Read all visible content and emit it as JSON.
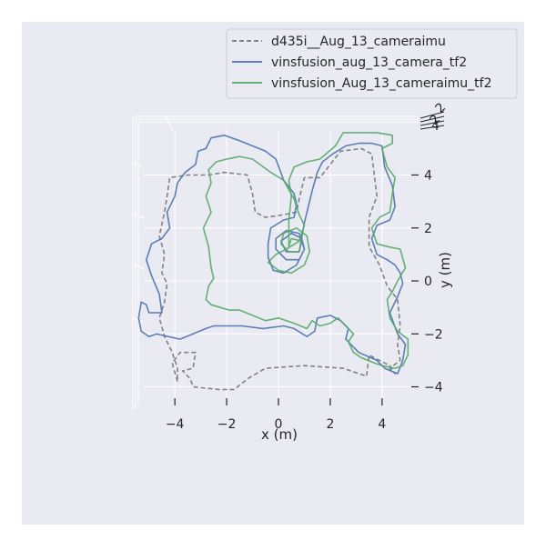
{
  "chart_data": {
    "type": "line",
    "projection": "3d-top-view",
    "title": "",
    "xlabel": "x (m)",
    "ylabel": "y (m)",
    "xlim": [
      -5.2,
      5.2
    ],
    "ylim": [
      -4.6,
      5.7
    ],
    "xticks": [
      -4,
      -2,
      0,
      2,
      4
    ],
    "yticks": [
      -4,
      -2,
      0,
      2,
      4
    ],
    "xtick_labels": [
      "−4",
      "−2",
      "0",
      "2",
      "4"
    ],
    "ytick_labels": [
      "−4",
      "−2",
      "0",
      "2",
      "4"
    ],
    "grid": true,
    "legend_position": "upper-right",
    "series": [
      {
        "name": "d435i__Aug_13_cameraimu",
        "color": "#777777",
        "dash": "dashed",
        "points": [
          [
            -3.9,
            -3.8
          ],
          [
            -4.1,
            -3.1
          ],
          [
            -3.8,
            -2.7
          ],
          [
            -3.2,
            -2.7
          ],
          [
            -3.3,
            -3.3
          ],
          [
            -3.7,
            -3.4
          ],
          [
            -3.4,
            -3.7
          ],
          [
            -3.3,
            -4.0
          ],
          [
            -2.3,
            -4.1
          ],
          [
            -1.7,
            -4.1
          ],
          [
            -1.2,
            -3.7
          ],
          [
            -0.5,
            -3.3
          ],
          [
            1.0,
            -3.2
          ],
          [
            2.5,
            -3.3
          ],
          [
            3.4,
            -3.6
          ],
          [
            3.5,
            -2.8
          ],
          [
            4.3,
            -3.2
          ],
          [
            4.5,
            -3.5
          ],
          [
            4.3,
            -3.3
          ],
          [
            4.7,
            -3.0
          ],
          [
            4.6,
            -2.4
          ],
          [
            4.7,
            -1.7
          ],
          [
            4.6,
            -0.7
          ],
          [
            4.2,
            -0.2
          ],
          [
            3.9,
            0.6
          ],
          [
            3.5,
            1.3
          ],
          [
            3.5,
            2.4
          ],
          [
            3.8,
            3.2
          ],
          [
            3.7,
            4.0
          ],
          [
            3.6,
            4.8
          ],
          [
            3.2,
            5.0
          ],
          [
            2.4,
            4.9
          ],
          [
            2.0,
            4.4
          ],
          [
            1.6,
            3.9
          ],
          [
            1.0,
            3.9
          ],
          [
            0.8,
            3.1
          ],
          [
            0.7,
            2.6
          ],
          [
            0.2,
            2.5
          ],
          [
            -0.5,
            2.4
          ],
          [
            -0.9,
            2.6
          ],
          [
            -1.0,
            3.3
          ],
          [
            -1.2,
            4.0
          ],
          [
            -2.1,
            4.1
          ],
          [
            -2.7,
            4.0
          ],
          [
            -3.5,
            4.0
          ],
          [
            -4.2,
            3.9
          ],
          [
            -4.3,
            3.2
          ],
          [
            -4.4,
            2.6
          ],
          [
            -4.6,
            1.7
          ],
          [
            -4.4,
            1.0
          ],
          [
            -4.5,
            0.3
          ],
          [
            -4.3,
            -0.1
          ],
          [
            -4.4,
            -0.8
          ],
          [
            -4.6,
            -1.4
          ],
          [
            -4.4,
            -2.1
          ],
          [
            -4.1,
            -2.7
          ],
          [
            -3.9,
            -3.3
          ],
          [
            -3.9,
            -3.8
          ]
        ]
      },
      {
        "name": "vinsfusion_aug_13_camera_tf2",
        "color": "#4c72b0",
        "dash": "solid",
        "points": [
          [
            -3.8,
            -2.2
          ],
          [
            -4.7,
            -2.0
          ],
          [
            -5.0,
            -2.1
          ],
          [
            -5.3,
            -1.9
          ],
          [
            -5.4,
            -1.4
          ],
          [
            -5.3,
            -0.8
          ],
          [
            -5.1,
            -0.9
          ],
          [
            -5.0,
            -1.2
          ],
          [
            -4.5,
            -1.2
          ],
          [
            -4.6,
            -0.5
          ],
          [
            -4.9,
            0.2
          ],
          [
            -5.1,
            0.8
          ],
          [
            -4.9,
            1.4
          ],
          [
            -4.5,
            1.6
          ],
          [
            -4.2,
            2.0
          ],
          [
            -4.3,
            2.6
          ],
          [
            -4.0,
            3.2
          ],
          [
            -3.9,
            3.7
          ],
          [
            -3.6,
            4.1
          ],
          [
            -3.2,
            4.4
          ],
          [
            -3.1,
            4.9
          ],
          [
            -2.8,
            5.0
          ],
          [
            -2.6,
            5.4
          ],
          [
            -2.1,
            5.5
          ],
          [
            -1.5,
            5.3
          ],
          [
            -1.0,
            5.1
          ],
          [
            -0.5,
            4.9
          ],
          [
            -0.1,
            4.6
          ],
          [
            0.2,
            3.8
          ],
          [
            0.6,
            3.3
          ],
          [
            0.7,
            2.9
          ],
          [
            0.6,
            2.4
          ],
          [
            0.2,
            2.3
          ],
          [
            -0.3,
            2.0
          ],
          [
            -0.4,
            1.4
          ],
          [
            -0.4,
            0.9
          ],
          [
            -0.2,
            0.4
          ],
          [
            0.2,
            0.3
          ],
          [
            0.7,
            0.6
          ],
          [
            1.0,
            1.2
          ],
          [
            0.8,
            1.8
          ],
          [
            0.3,
            1.9
          ],
          [
            -0.1,
            1.6
          ],
          [
            -0.1,
            1.2
          ],
          [
            0.3,
            0.8
          ],
          [
            0.8,
            0.8
          ],
          [
            1.0,
            1.2
          ],
          [
            0.9,
            1.6
          ],
          [
            0.5,
            1.8
          ],
          [
            0.1,
            1.5
          ],
          [
            0.3,
            1.1
          ],
          [
            0.8,
            1.1
          ],
          [
            1.0,
            2.2
          ],
          [
            1.3,
            3.4
          ],
          [
            1.5,
            4.1
          ],
          [
            1.7,
            4.5
          ],
          [
            2.1,
            4.8
          ],
          [
            2.6,
            5.1
          ],
          [
            3.1,
            5.2
          ],
          [
            3.6,
            5.2
          ],
          [
            4.0,
            5.1
          ],
          [
            4.1,
            4.3
          ],
          [
            4.4,
            3.6
          ],
          [
            4.5,
            2.8
          ],
          [
            4.3,
            2.3
          ],
          [
            3.8,
            2.1
          ],
          [
            3.6,
            1.6
          ],
          [
            3.8,
            1.0
          ],
          [
            4.2,
            0.8
          ],
          [
            4.5,
            0.6
          ],
          [
            4.7,
            0.3
          ],
          [
            4.8,
            -0.1
          ],
          [
            4.6,
            -0.6
          ],
          [
            4.3,
            -1.2
          ],
          [
            4.6,
            -2.0
          ],
          [
            4.9,
            -2.4
          ],
          [
            4.8,
            -3.0
          ],
          [
            4.6,
            -3.5
          ],
          [
            4.1,
            -3.3
          ],
          [
            3.8,
            -3.0
          ],
          [
            3.1,
            -2.7
          ],
          [
            2.6,
            -2.2
          ],
          [
            2.7,
            -1.8
          ],
          [
            2.4,
            -1.5
          ],
          [
            2.0,
            -1.3
          ],
          [
            1.5,
            -1.4
          ],
          [
            1.4,
            -1.9
          ],
          [
            1.1,
            -2.1
          ],
          [
            0.6,
            -1.8
          ],
          [
            0.2,
            -1.7
          ],
          [
            -0.6,
            -1.8
          ],
          [
            -1.4,
            -1.7
          ],
          [
            -1.9,
            -1.7
          ],
          [
            -2.5,
            -1.7
          ],
          [
            -2.8,
            -1.8
          ],
          [
            -3.3,
            -2.0
          ],
          [
            -3.8,
            -2.2
          ]
        ]
      },
      {
        "name": "vinsfusion_Aug_13_cameraimu_tf2",
        "color": "#55a868",
        "dash": "solid",
        "points": [
          [
            -1.9,
            -1.1
          ],
          [
            -2.6,
            -0.9
          ],
          [
            -2.8,
            -0.7
          ],
          [
            -2.7,
            -0.2
          ],
          [
            -2.5,
            0.1
          ],
          [
            -2.6,
            0.5
          ],
          [
            -2.7,
            1.3
          ],
          [
            -2.9,
            2.0
          ],
          [
            -2.6,
            2.6
          ],
          [
            -2.8,
            3.2
          ],
          [
            -2.6,
            3.7
          ],
          [
            -2.7,
            4.2
          ],
          [
            -2.4,
            4.5
          ],
          [
            -2.0,
            4.6
          ],
          [
            -1.5,
            4.7
          ],
          [
            -1.0,
            4.6
          ],
          [
            -0.3,
            4.1
          ],
          [
            0.2,
            3.8
          ],
          [
            0.6,
            3.1
          ],
          [
            0.8,
            2.5
          ],
          [
            1.0,
            2.1
          ],
          [
            0.8,
            1.5
          ],
          [
            0.3,
            1.2
          ],
          [
            -0.1,
            1.0
          ],
          [
            -0.4,
            0.7
          ],
          [
            0.0,
            0.4
          ],
          [
            0.5,
            0.3
          ],
          [
            1.0,
            0.6
          ],
          [
            1.2,
            1.1
          ],
          [
            1.1,
            1.7
          ],
          [
            0.7,
            2.0
          ],
          [
            0.2,
            1.8
          ],
          [
            0.1,
            1.4
          ],
          [
            0.4,
            1.1
          ],
          [
            0.8,
            1.1
          ],
          [
            0.9,
            1.5
          ],
          [
            0.5,
            1.6
          ],
          [
            0.4,
            1.3
          ],
          [
            0.4,
            2.3
          ],
          [
            0.5,
            3.2
          ],
          [
            0.4,
            3.8
          ],
          [
            0.6,
            4.3
          ],
          [
            1.1,
            4.5
          ],
          [
            1.6,
            4.6
          ],
          [
            2.2,
            5.1
          ],
          [
            2.5,
            5.6
          ],
          [
            3.1,
            5.6
          ],
          [
            3.8,
            5.6
          ],
          [
            4.4,
            5.5
          ],
          [
            4.4,
            5.2
          ],
          [
            4.0,
            5.0
          ],
          [
            4.2,
            4.3
          ],
          [
            4.5,
            3.9
          ],
          [
            4.4,
            3.3
          ],
          [
            4.3,
            2.6
          ],
          [
            3.9,
            2.4
          ],
          [
            3.6,
            2.0
          ],
          [
            3.8,
            1.4
          ],
          [
            4.2,
            1.3
          ],
          [
            4.7,
            1.2
          ],
          [
            4.9,
            0.5
          ],
          [
            4.6,
            0.0
          ],
          [
            4.4,
            -0.4
          ],
          [
            4.2,
            -0.7
          ],
          [
            4.3,
            -1.4
          ],
          [
            4.6,
            -1.9
          ],
          [
            5.0,
            -2.2
          ],
          [
            5.0,
            -2.8
          ],
          [
            4.8,
            -3.2
          ],
          [
            4.5,
            -3.3
          ],
          [
            4.0,
            -3.2
          ],
          [
            3.7,
            -3.1
          ],
          [
            3.2,
            -2.9
          ],
          [
            2.9,
            -2.7
          ],
          [
            2.7,
            -2.3
          ],
          [
            2.9,
            -2.0
          ],
          [
            2.6,
            -1.7
          ],
          [
            2.3,
            -1.4
          ],
          [
            2.0,
            -1.6
          ],
          [
            1.6,
            -1.7
          ],
          [
            1.3,
            -1.5
          ],
          [
            1.1,
            -1.8
          ],
          [
            0.6,
            -1.6
          ],
          [
            0.0,
            -1.4
          ],
          [
            -0.5,
            -1.5
          ],
          [
            -1.0,
            -1.3
          ],
          [
            -1.5,
            -1.1
          ],
          [
            -1.9,
            -1.1
          ]
        ]
      }
    ]
  }
}
